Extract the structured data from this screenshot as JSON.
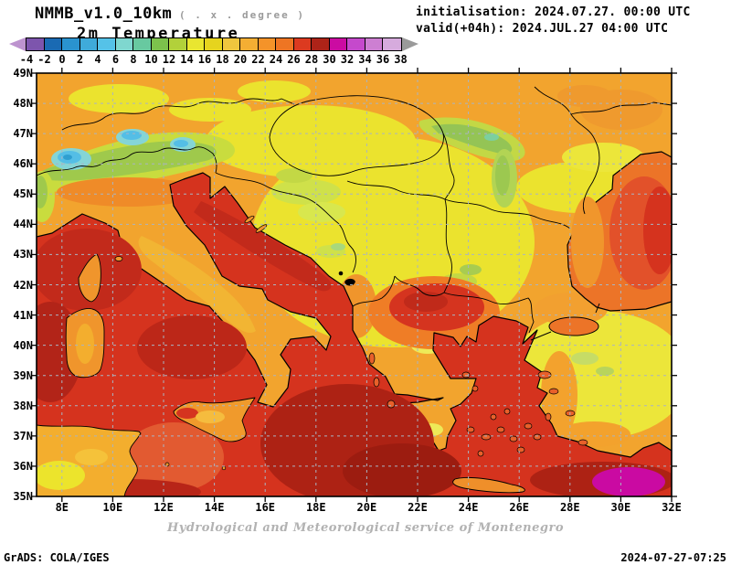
{
  "header": {
    "model_title": "NMMB_v1.0_10km",
    "resolution_note": "( . x . degree )",
    "variable_title": "2m Temperature",
    "initialisation": "initialisation: 2024.07.27. 00:00 UTC",
    "valid": "valid(+04h): 2024.JUL.27 04:00 UTC"
  },
  "colorbar": {
    "tick_labels": [
      "-4",
      "-2",
      "0",
      "2",
      "4",
      "6",
      "8",
      "10",
      "12",
      "14",
      "16",
      "18",
      "20",
      "22",
      "24",
      "26",
      "28",
      "30",
      "32",
      "34",
      "36",
      "38"
    ],
    "cell_colors": [
      "#7d55ad",
      "#1a6ab3",
      "#2a93cf",
      "#3fabda",
      "#55c2e8",
      "#7fd7cf",
      "#68c9a0",
      "#7cc24c",
      "#b2d13a",
      "#e9e630",
      "#e6d41e",
      "#f0c63e",
      "#f4ae33",
      "#f49329",
      "#ee7523",
      "#dc3a20",
      "#ad2318",
      "#cb0ba2",
      "#c549cc",
      "#cd7fd2",
      "#d6abdd"
    ],
    "arrow_left_color": "#bd93cf",
    "arrow_right_color": "#9a9a9a"
  },
  "map_axes": {
    "lat_labels": [
      "49N",
      "48N",
      "47N",
      "46N",
      "45N",
      "44N",
      "43N",
      "42N",
      "41N",
      "40N",
      "39N",
      "38N",
      "37N",
      "36N",
      "35N"
    ],
    "lon_labels": [
      "8E",
      "10E",
      "12E",
      "14E",
      "16E",
      "18E",
      "20E",
      "22E",
      "24E",
      "26E",
      "28E",
      "30E",
      "32E"
    ]
  },
  "footer": {
    "credit": "Hydrological and Meteorological service of Montenegro",
    "grads_credit": "GrADS: COLA/IGES",
    "timestamp": "2024-07-27-07:25"
  }
}
